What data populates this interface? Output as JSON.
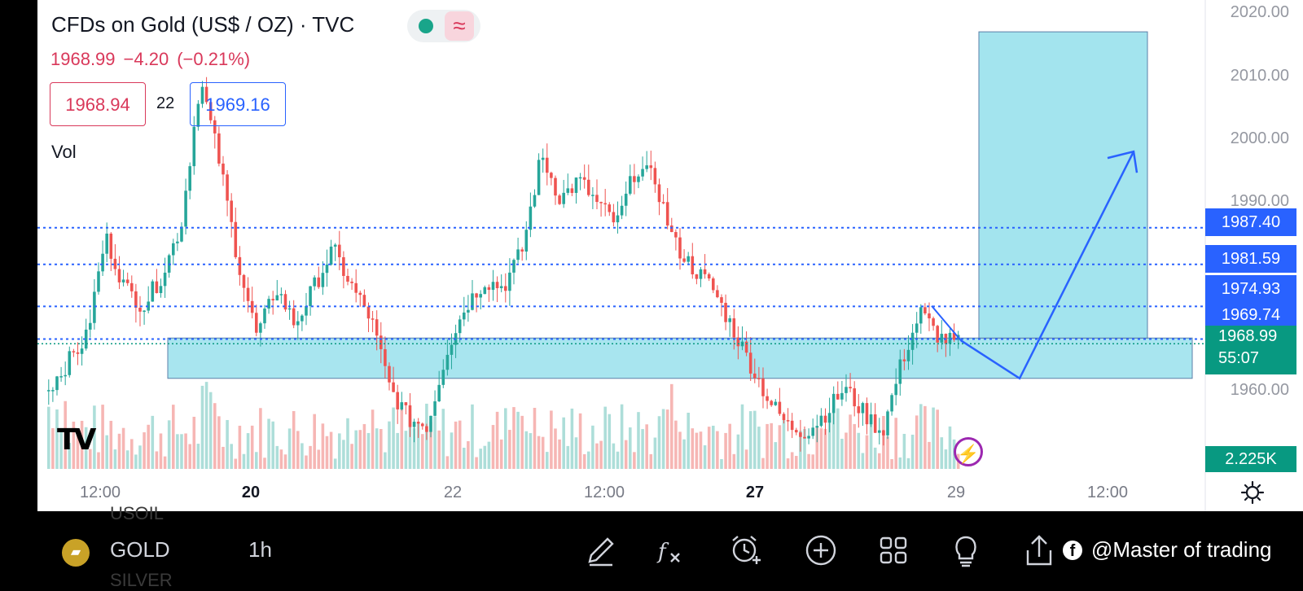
{
  "header": {
    "title": "CFDs on Gold (US$ / OZ) · TVC",
    "last_price": "1968.99",
    "change": "−4.20",
    "change_pct": "(−0.21%)",
    "bid": "1968.94",
    "spread": "22",
    "ask": "1969.16",
    "volume_label": "Vol",
    "status_icons": [
      "market-open-dot-icon",
      "wave-icon"
    ]
  },
  "price_axis": {
    "ticks": [
      "2020.00",
      "2010.00",
      "2000.00",
      "1990.00",
      "1960.00"
    ],
    "line_labels": [
      "1987.40",
      "1981.59",
      "1974.93",
      "1969.74"
    ],
    "current_price": "1968.99",
    "countdown": "55:07",
    "volume_value": "2.225K"
  },
  "time_axis": {
    "labels": [
      "12:00",
      "20",
      "22",
      "12:00",
      "27",
      "29",
      "12:00"
    ]
  },
  "toolbar": {
    "ghost_above": "USOIL",
    "ghost_below": "SILVER",
    "symbol": "GOLD",
    "interval": "1h",
    "icons": [
      "pencil-icon",
      "fx-indicators-icon",
      "alert-clock-icon",
      "add-circle-icon",
      "grid-icon",
      "idea-bulb-icon",
      "share-icon"
    ],
    "watermark": "@Master of trading"
  },
  "colors": {
    "up": "#26a69a",
    "down": "#ef5350",
    "zone": "#a3e4ee",
    "levels": "#2962ff",
    "current": "#089981"
  },
  "chart_data": {
    "type": "candlestick",
    "symbol": "GOLD",
    "interval": "1h",
    "ylim": [
      1958,
      2022
    ],
    "levels": [
      1987.4,
      1981.59,
      1974.93,
      1969.74
    ],
    "support_zone": [
      1963.5,
      1969.9
    ],
    "target_box": [
      1969.9,
      2018.5
    ],
    "projection": [
      1969.5,
      1963.5,
      1999.5
    ],
    "approx_closes": [
      1962,
      1966,
      1970,
      1986,
      1978,
      1975,
      1980,
      1988,
      2011,
      1998,
      1982,
      1970,
      1978,
      1972,
      1978,
      1984,
      1978,
      1973,
      1962,
      1957,
      1956,
      1968,
      1975,
      1979,
      1978,
      1984,
      1999,
      1992,
      1995,
      1991,
      1988,
      1997,
      1995,
      1985,
      1981,
      1978,
      1972,
      1966,
      1960,
      1956,
      1955,
      1958,
      1962,
      1958,
      1955,
      1966,
      1974,
      1970,
      1968.99
    ]
  }
}
